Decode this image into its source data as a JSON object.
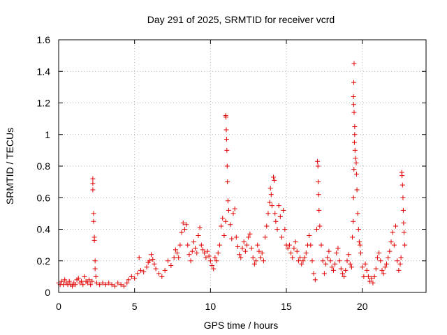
{
  "chart_data": {
    "type": "scatter",
    "title": "Day 291 of 2025, SRMTID for receiver vcrd",
    "xlabel": "GPS time / hours",
    "ylabel": "SRMTID / TECUs",
    "xlim": [
      0,
      24.2
    ],
    "ylim": [
      0,
      1.6
    ],
    "xticks": [
      0,
      5,
      10,
      15,
      20
    ],
    "xtick_labels": [
      "0",
      "5",
      "10",
      "15",
      "20"
    ],
    "yticks": [
      0,
      0.2,
      0.4,
      0.6,
      0.8,
      1.0,
      1.2,
      1.4,
      1.6
    ],
    "ytick_labels": [
      "0",
      "0.2",
      "0.4",
      "0.6",
      "0.8",
      "1",
      "1.2",
      "1.4",
      "1.6"
    ],
    "grid": true,
    "marker": "+",
    "marker_color": "#e00000",
    "series": [
      {
        "name": "SRMTID",
        "points": [
          [
            0.0,
            0.06
          ],
          [
            0.1,
            0.05
          ],
          [
            0.2,
            0.07
          ],
          [
            0.3,
            0.05
          ],
          [
            0.4,
            0.08
          ],
          [
            0.5,
            0.06
          ],
          [
            0.6,
            0.05
          ],
          [
            0.7,
            0.07
          ],
          [
            0.8,
            0.05
          ],
          [
            0.9,
            0.04
          ],
          [
            1.0,
            0.06
          ],
          [
            1.1,
            0.05
          ],
          [
            1.2,
            0.08
          ],
          [
            1.3,
            0.09
          ],
          [
            1.4,
            0.06
          ],
          [
            1.5,
            0.07
          ],
          [
            1.6,
            0.05
          ],
          [
            1.7,
            0.1
          ],
          [
            1.8,
            0.07
          ],
          [
            1.9,
            0.06
          ],
          [
            2.0,
            0.08
          ],
          [
            2.1,
            0.05
          ],
          [
            2.2,
            0.07
          ],
          [
            2.25,
            0.72
          ],
          [
            2.25,
            0.69
          ],
          [
            2.25,
            0.65
          ],
          [
            2.3,
            0.5
          ],
          [
            2.3,
            0.45
          ],
          [
            2.35,
            0.35
          ],
          [
            2.35,
            0.33
          ],
          [
            2.4,
            0.2
          ],
          [
            2.4,
            0.15
          ],
          [
            2.45,
            0.1
          ],
          [
            2.5,
            0.06
          ],
          [
            2.7,
            0.05
          ],
          [
            2.9,
            0.06
          ],
          [
            3.1,
            0.05
          ],
          [
            3.3,
            0.06
          ],
          [
            3.5,
            0.05
          ],
          [
            3.7,
            0.04
          ],
          [
            3.9,
            0.06
          ],
          [
            4.1,
            0.05
          ],
          [
            4.3,
            0.04
          ],
          [
            4.5,
            0.06
          ],
          [
            4.6,
            0.08
          ],
          [
            4.8,
            0.1
          ],
          [
            5.0,
            0.09
          ],
          [
            5.2,
            0.12
          ],
          [
            5.3,
            0.22
          ],
          [
            5.4,
            0.14
          ],
          [
            5.6,
            0.13
          ],
          [
            5.8,
            0.16
          ],
          [
            5.9,
            0.19
          ],
          [
            6.0,
            0.2
          ],
          [
            6.1,
            0.24
          ],
          [
            6.2,
            0.21
          ],
          [
            6.3,
            0.18
          ],
          [
            6.4,
            0.15
          ],
          [
            6.6,
            0.12
          ],
          [
            6.8,
            0.1
          ],
          [
            7.0,
            0.14
          ],
          [
            7.2,
            0.2
          ],
          [
            7.4,
            0.17
          ],
          [
            7.6,
            0.22
          ],
          [
            7.7,
            0.27
          ],
          [
            7.8,
            0.25
          ],
          [
            7.9,
            0.22
          ],
          [
            8.0,
            0.3
          ],
          [
            8.1,
            0.38
          ],
          [
            8.2,
            0.44
          ],
          [
            8.3,
            0.4
          ],
          [
            8.4,
            0.43
          ],
          [
            8.5,
            0.3
          ],
          [
            8.6,
            0.24
          ],
          [
            8.7,
            0.2
          ],
          [
            8.8,
            0.26
          ],
          [
            8.9,
            0.32
          ],
          [
            9.0,
            0.28
          ],
          [
            9.1,
            0.25
          ],
          [
            9.2,
            0.36
          ],
          [
            9.3,
            0.41
          ],
          [
            9.4,
            0.3
          ],
          [
            9.5,
            0.27
          ],
          [
            9.6,
            0.25
          ],
          [
            9.7,
            0.22
          ],
          [
            9.8,
            0.26
          ],
          [
            9.9,
            0.23
          ],
          [
            10.0,
            0.2
          ],
          [
            10.1,
            0.17
          ],
          [
            10.2,
            0.15
          ],
          [
            10.3,
            0.22
          ],
          [
            10.4,
            0.2
          ],
          [
            10.5,
            0.25
          ],
          [
            10.6,
            0.3
          ],
          [
            10.7,
            0.42
          ],
          [
            10.8,
            0.47
          ],
          [
            10.9,
            0.36
          ],
          [
            11.0,
            0.45
          ],
          [
            11.0,
            1.12
          ],
          [
            11.02,
            1.11
          ],
          [
            11.04,
            1.03
          ],
          [
            11.06,
            0.97
          ],
          [
            11.08,
            0.9
          ],
          [
            11.1,
            0.8
          ],
          [
            11.12,
            0.7
          ],
          [
            11.15,
            0.58
          ],
          [
            11.2,
            0.52
          ],
          [
            11.3,
            0.43
          ],
          [
            11.4,
            0.34
          ],
          [
            11.5,
            0.5
          ],
          [
            11.6,
            0.53
          ],
          [
            11.7,
            0.35
          ],
          [
            11.8,
            0.29
          ],
          [
            11.9,
            0.24
          ],
          [
            12.0,
            0.22
          ],
          [
            12.1,
            0.28
          ],
          [
            12.2,
            0.32
          ],
          [
            12.3,
            0.26
          ],
          [
            12.4,
            0.3
          ],
          [
            12.5,
            0.35
          ],
          [
            12.6,
            0.37
          ],
          [
            12.7,
            0.28
          ],
          [
            12.8,
            0.22
          ],
          [
            12.9,
            0.18
          ],
          [
            13.0,
            0.2
          ],
          [
            13.1,
            0.3
          ],
          [
            13.2,
            0.26
          ],
          [
            13.3,
            0.22
          ],
          [
            13.4,
            0.25
          ],
          [
            13.5,
            0.2
          ],
          [
            13.6,
            0.35
          ],
          [
            13.7,
            0.42
          ],
          [
            13.8,
            0.5
          ],
          [
            13.9,
            0.57
          ],
          [
            13.95,
            0.66
          ],
          [
            14.0,
            0.62
          ],
          [
            14.05,
            0.55
          ],
          [
            14.15,
            0.73
          ],
          [
            14.2,
            0.71
          ],
          [
            14.25,
            0.5
          ],
          [
            14.3,
            0.45
          ],
          [
            14.4,
            0.4
          ],
          [
            14.5,
            0.55
          ],
          [
            14.6,
            0.48
          ],
          [
            14.7,
            0.35
          ],
          [
            14.8,
            0.52
          ],
          [
            14.9,
            0.4
          ],
          [
            15.0,
            0.3
          ],
          [
            15.1,
            0.28
          ],
          [
            15.2,
            0.3
          ],
          [
            15.3,
            0.25
          ],
          [
            15.4,
            0.22
          ],
          [
            15.5,
            0.28
          ],
          [
            15.6,
            0.32
          ],
          [
            15.7,
            0.26
          ],
          [
            15.8,
            0.2
          ],
          [
            15.9,
            0.22
          ],
          [
            16.0,
            0.18
          ],
          [
            16.1,
            0.2
          ],
          [
            16.2,
            0.22
          ],
          [
            16.3,
            0.25
          ],
          [
            16.4,
            0.3
          ],
          [
            16.5,
            0.36
          ],
          [
            16.6,
            0.3
          ],
          [
            16.7,
            0.2
          ],
          [
            16.8,
            0.12
          ],
          [
            16.9,
            0.08
          ],
          [
            17.0,
            0.4
          ],
          [
            17.05,
            0.83
          ],
          [
            17.08,
            0.8
          ],
          [
            17.1,
            0.7
          ],
          [
            17.12,
            0.62
          ],
          [
            17.15,
            0.52
          ],
          [
            17.2,
            0.42
          ],
          [
            17.3,
            0.3
          ],
          [
            17.4,
            0.2
          ],
          [
            17.5,
            0.12
          ],
          [
            17.6,
            0.18
          ],
          [
            17.7,
            0.22
          ],
          [
            17.8,
            0.26
          ],
          [
            17.9,
            0.2
          ],
          [
            18.0,
            0.16
          ],
          [
            18.1,
            0.14
          ],
          [
            18.2,
            0.18
          ],
          [
            18.3,
            0.25
          ],
          [
            18.4,
            0.28
          ],
          [
            18.5,
            0.2
          ],
          [
            18.6,
            0.15
          ],
          [
            18.7,
            0.12
          ],
          [
            18.8,
            0.1
          ],
          [
            18.9,
            0.14
          ],
          [
            19.0,
            0.2
          ],
          [
            19.1,
            0.24
          ],
          [
            19.2,
            0.18
          ],
          [
            19.3,
            0.16
          ],
          [
            19.35,
            0.35
          ],
          [
            19.4,
            0.45
          ],
          [
            19.42,
            0.6
          ],
          [
            19.45,
            0.78
          ],
          [
            19.48,
            0.95
          ],
          [
            19.5,
            1.05
          ],
          [
            19.5,
            1.0
          ],
          [
            19.52,
            0.9
          ],
          [
            19.46,
            1.14
          ],
          [
            19.44,
            1.19
          ],
          [
            19.42,
            1.24
          ],
          [
            19.44,
            1.33
          ],
          [
            19.46,
            1.45
          ],
          [
            19.55,
            0.85
          ],
          [
            19.6,
            0.82
          ],
          [
            19.62,
            0.75
          ],
          [
            19.65,
            0.65
          ],
          [
            19.7,
            0.5
          ],
          [
            19.75,
            0.4
          ],
          [
            19.8,
            0.32
          ],
          [
            19.85,
            0.3
          ],
          [
            19.9,
            0.25
          ],
          [
            20.0,
            0.16
          ],
          [
            20.1,
            0.1
          ],
          [
            20.2,
            0.18
          ],
          [
            20.3,
            0.14
          ],
          [
            20.4,
            0.1
          ],
          [
            20.5,
            0.07
          ],
          [
            20.6,
            0.09
          ],
          [
            20.7,
            0.06
          ],
          [
            20.8,
            0.1
          ],
          [
            20.9,
            0.15
          ],
          [
            21.0,
            0.22
          ],
          [
            21.1,
            0.25
          ],
          [
            21.2,
            0.2
          ],
          [
            21.3,
            0.14
          ],
          [
            21.4,
            0.12
          ],
          [
            21.5,
            0.16
          ],
          [
            21.6,
            0.18
          ],
          [
            21.7,
            0.22
          ],
          [
            21.8,
            0.26
          ],
          [
            21.9,
            0.32
          ],
          [
            22.0,
            0.38
          ],
          [
            22.1,
            0.3
          ],
          [
            22.2,
            0.42
          ],
          [
            22.3,
            0.2
          ],
          [
            22.4,
            0.14
          ],
          [
            22.5,
            0.18
          ],
          [
            22.55,
            0.22
          ],
          [
            22.6,
            0.76
          ],
          [
            22.62,
            0.74
          ],
          [
            22.65,
            0.68
          ],
          [
            22.68,
            0.6
          ],
          [
            22.7,
            0.52
          ],
          [
            22.72,
            0.44
          ],
          [
            22.75,
            0.38
          ],
          [
            22.8,
            0.3
          ]
        ]
      }
    ]
  }
}
